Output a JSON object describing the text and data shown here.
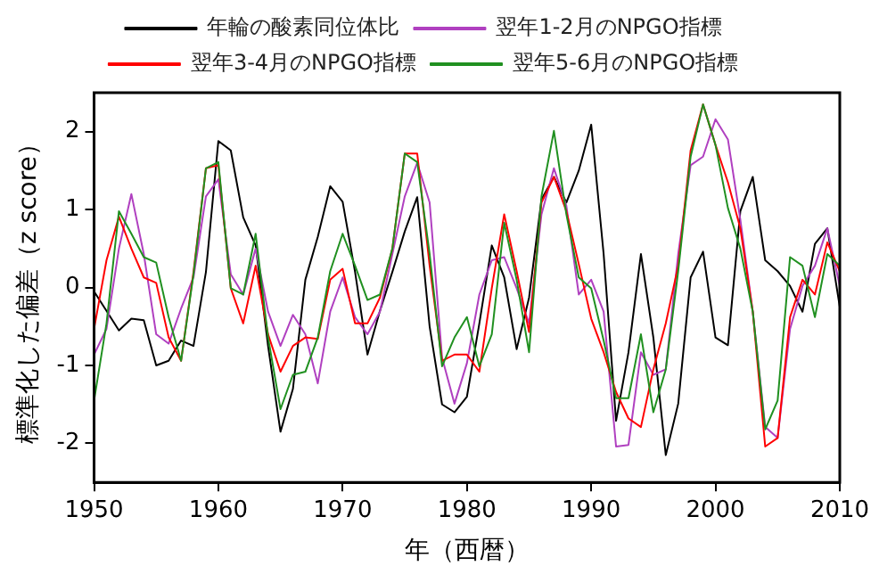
{
  "chart_data": {
    "type": "line",
    "xlabel": "年（西暦）",
    "ylabel": "標準化した偏差（z score）",
    "x": [
      1950,
      1951,
      1952,
      1953,
      1954,
      1955,
      1956,
      1957,
      1958,
      1959,
      1960,
      1961,
      1962,
      1963,
      1964,
      1965,
      1966,
      1967,
      1968,
      1969,
      1970,
      1971,
      1972,
      1973,
      1974,
      1975,
      1976,
      1977,
      1978,
      1979,
      1980,
      1981,
      1982,
      1983,
      1984,
      1985,
      1986,
      1987,
      1988,
      1989,
      1990,
      1991,
      1992,
      1993,
      1994,
      1995,
      1996,
      1997,
      1998,
      1999,
      2000,
      2001,
      2002,
      2003,
      2004,
      2005,
      2006,
      2007,
      2008,
      2009,
      2010
    ],
    "series": [
      {
        "name": "年輪の酸素同位体比",
        "color": "#000000",
        "values": [
          -0.05,
          -0.3,
          -0.55,
          -0.4,
          -0.42,
          -1.0,
          -0.94,
          -0.68,
          -0.75,
          0.2,
          1.88,
          1.76,
          0.9,
          0.54,
          -0.75,
          -1.85,
          -1.3,
          0.1,
          0.65,
          1.3,
          1.1,
          0.2,
          -0.86,
          -0.3,
          0.2,
          0.72,
          1.16,
          -0.5,
          -1.5,
          -1.6,
          -1.4,
          -0.46,
          0.54,
          0.13,
          -0.79,
          -0.13,
          1.13,
          1.42,
          1.09,
          1.5,
          2.09,
          0.43,
          -1.71,
          -0.83,
          0.43,
          -0.64,
          -2.15,
          -1.49,
          0.13,
          0.46,
          -0.64,
          -0.74,
          0.98,
          1.42,
          0.35,
          0.21,
          0.02,
          -0.31,
          0.56,
          0.76,
          -0.25
        ]
      },
      {
        "name": "翌年1-2月のNPGO指標",
        "color": "#b040c0",
        "values": [
          -0.86,
          -0.53,
          0.5,
          1.2,
          0.43,
          -0.6,
          -0.72,
          -0.27,
          0.13,
          1.17,
          1.39,
          0.17,
          -0.09,
          0.5,
          -0.31,
          -0.75,
          -0.35,
          -0.6,
          -1.23,
          -0.31,
          0.13,
          -0.38,
          -0.6,
          -0.31,
          0.43,
          1.17,
          1.6,
          1.09,
          -0.9,
          -1.49,
          -0.97,
          -0.09,
          0.35,
          0.39,
          -0.01,
          -0.46,
          0.94,
          1.53,
          1.05,
          -0.09,
          0.1,
          -0.31,
          -2.04,
          -2.02,
          -0.83,
          -1.12,
          -1.05,
          0.43,
          1.57,
          1.68,
          2.16,
          1.9,
          0.87,
          -0.31,
          -1.79,
          -1.93,
          -0.53,
          0.02,
          0.28,
          0.76,
          0.02
        ]
      },
      {
        "name": "翌年3-4月のNPGO指標",
        "color": "#ff0000",
        "values": [
          -0.53,
          0.35,
          0.91,
          0.5,
          0.13,
          0.06,
          -0.64,
          -0.94,
          0.2,
          1.53,
          1.57,
          -0.01,
          -0.46,
          0.28,
          -0.6,
          -1.08,
          -0.75,
          -0.64,
          -0.66,
          0.1,
          0.24,
          -0.46,
          -0.46,
          -0.13,
          0.5,
          1.72,
          1.72,
          0.28,
          -0.94,
          -0.86,
          -0.86,
          -1.08,
          -0.01,
          0.94,
          0.21,
          -0.57,
          1.09,
          1.42,
          0.98,
          0.3,
          -0.4,
          -0.83,
          -1.34,
          -1.68,
          -1.79,
          -1.05,
          -0.46,
          0.28,
          1.76,
          2.35,
          1.83,
          1.35,
          0.76,
          -0.31,
          -2.04,
          -1.93,
          -0.38,
          0.1,
          -0.09,
          0.58,
          0.21
        ]
      },
      {
        "name": "翌年5-6月のNPGO指標",
        "color": "#209020",
        "values": [
          -1.45,
          -0.46,
          0.98,
          0.69,
          0.39,
          0.32,
          -0.38,
          -0.94,
          0.17,
          1.53,
          1.61,
          -0.01,
          -0.09,
          0.69,
          -0.64,
          -1.56,
          -1.12,
          -1.08,
          -0.64,
          0.21,
          0.69,
          0.28,
          -0.16,
          -0.09,
          0.5,
          1.72,
          1.61,
          0.43,
          -1.01,
          -0.64,
          -0.38,
          -1.01,
          -0.6,
          0.83,
          0.1,
          -0.83,
          1.17,
          2.01,
          0.94,
          0.13,
          -0.01,
          -0.68,
          -1.42,
          -1.42,
          -0.6,
          -1.6,
          -1.05,
          0.21,
          1.68,
          2.35,
          1.83,
          1.02,
          0.5,
          -0.31,
          -1.82,
          -1.45,
          0.39,
          0.28,
          -0.38,
          0.43,
          0.28
        ]
      }
    ],
    "xlim": [
      1950,
      2010
    ],
    "xticks": [
      1950,
      1960,
      1970,
      1980,
      1990,
      2000,
      2010
    ],
    "ylim": [
      -2.5,
      2.5
    ],
    "yticks": [
      -2,
      -1,
      0,
      1,
      2
    ],
    "grid": false,
    "legend": "top",
    "marker": "none",
    "line_style": "solid"
  }
}
